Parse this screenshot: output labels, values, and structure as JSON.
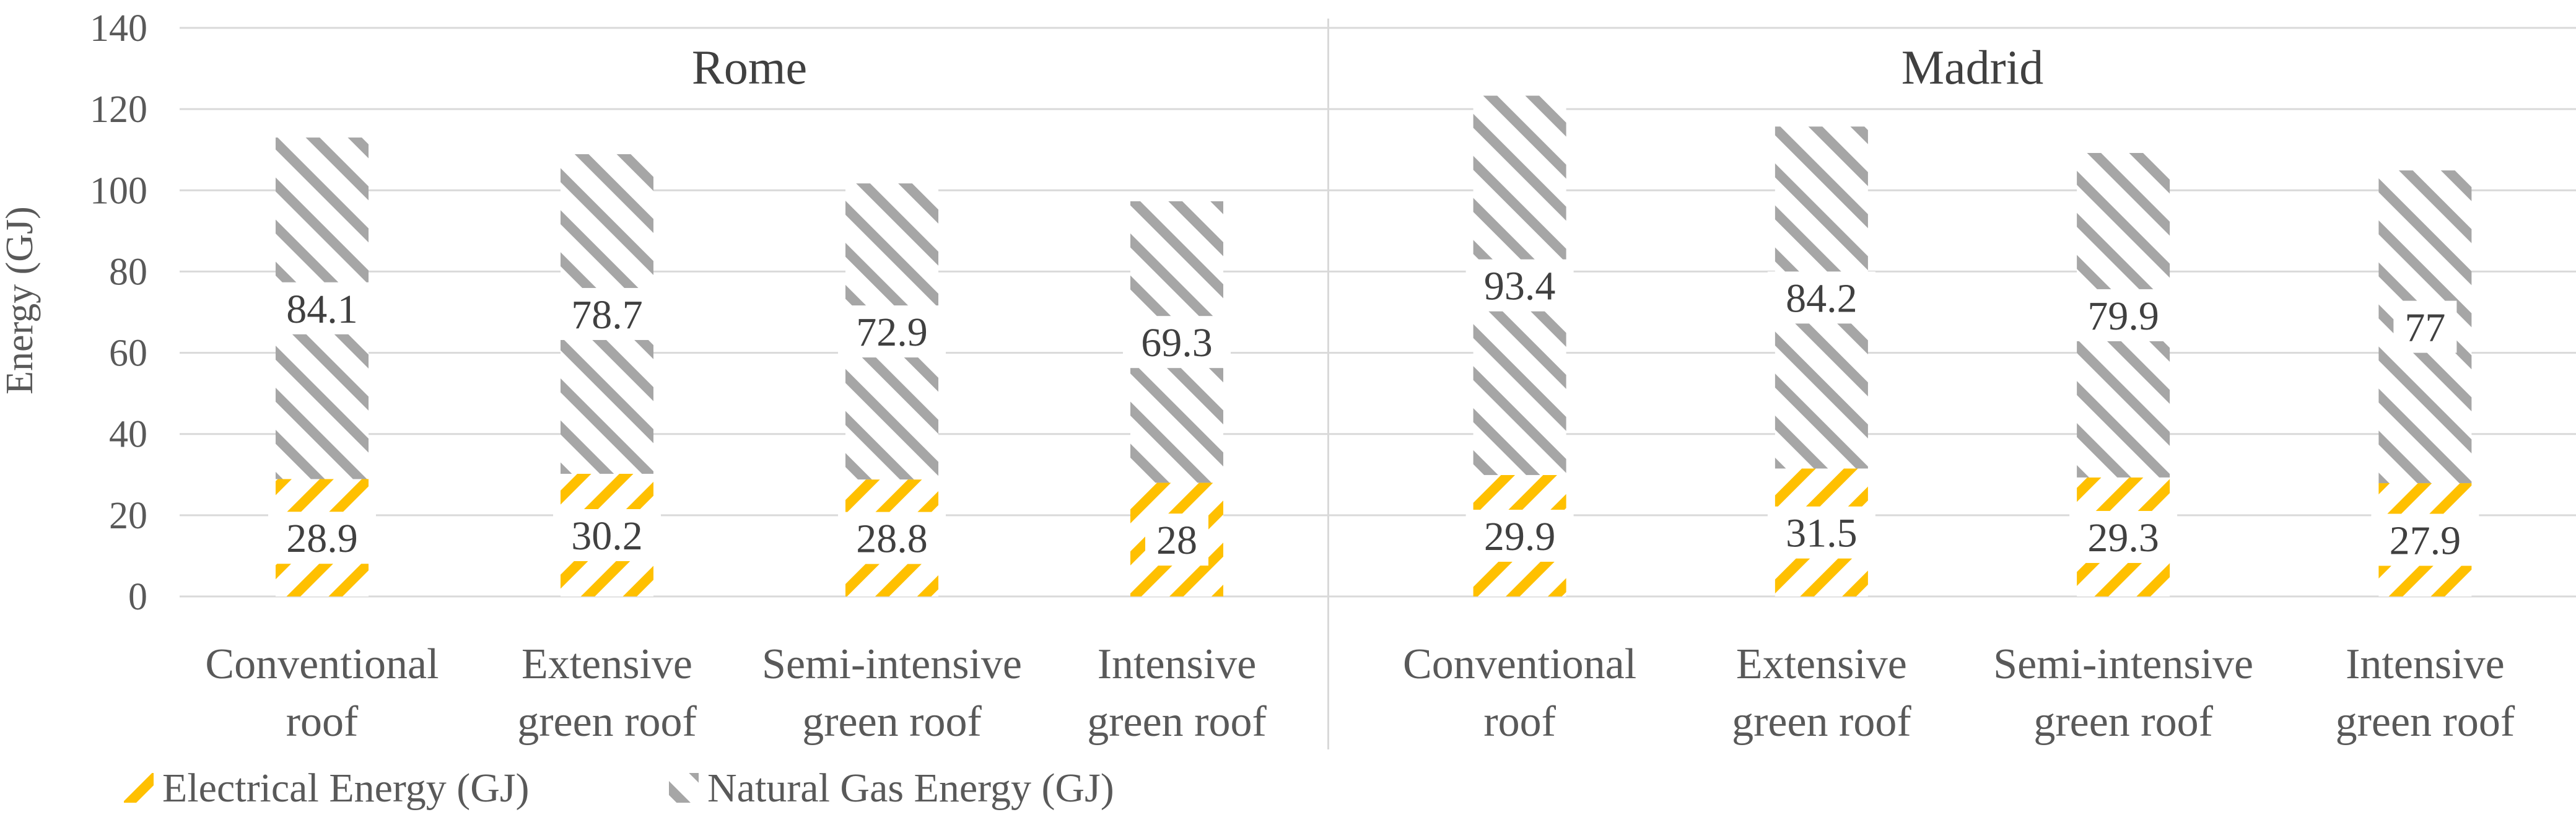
{
  "chart_data": {
    "type": "bar",
    "stacked": true,
    "ylabel": "Energy (GJ)",
    "ylim": [
      0,
      140
    ],
    "yticks": [
      0,
      20,
      40,
      60,
      80,
      100,
      120,
      140
    ],
    "grid": true,
    "legend_position": "bottom-left",
    "categories": [
      "Conventional roof",
      "Extensive green roof",
      "Semi-intensive green roof",
      "Intensive green roof"
    ],
    "category_lines": [
      [
        "Conventional",
        "roof"
      ],
      [
        "Extensive",
        "green roof"
      ],
      [
        "Semi-intensive",
        "green roof"
      ],
      [
        "Intensive",
        "green roof"
      ]
    ],
    "panels": [
      {
        "title": "Rome",
        "series": [
          {
            "name": "Electrical Energy (GJ)",
            "values": [
              28.9,
              30.2,
              28.8,
              28
            ]
          },
          {
            "name": "Natural Gas Energy (GJ)",
            "values": [
              84.1,
              78.7,
              72.9,
              69.3
            ]
          }
        ]
      },
      {
        "title": "Madrid",
        "series": [
          {
            "name": "Electrical Energy (GJ)",
            "values": [
              29.9,
              31.5,
              29.3,
              27.9
            ]
          },
          {
            "name": "Natural Gas Energy (GJ)",
            "values": [
              93.4,
              84.2,
              79.9,
              77
            ]
          }
        ]
      }
    ],
    "legend": [
      "Electrical Energy (GJ)",
      "Natural Gas Energy (GJ)"
    ],
    "colors": {
      "electrical": "#FFC000",
      "natural_gas": "#A6A6A6",
      "gridline": "#D9D9D9",
      "separator": "#D9D9D9",
      "text": "#595959"
    }
  }
}
